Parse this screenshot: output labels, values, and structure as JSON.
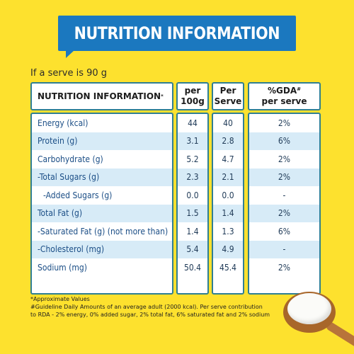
{
  "banner": {
    "title": "NUTRITION INFORMATION"
  },
  "serve_note": "If a serve is 90 g",
  "table": {
    "headers": {
      "name": "NUTRITION INFORMATION",
      "name_sup": "*",
      "per100": "per 100g",
      "per_serve": "Per Serve",
      "gda": "%GDA",
      "gda_sup": "#",
      "gda_sub": "per serve"
    },
    "rows": [
      {
        "name": "Energy (kcal)",
        "per100": "44",
        "per_serve": "40",
        "gda": "2%"
      },
      {
        "name": "Protein (g)",
        "per100": "3.1",
        "per_serve": "2.8",
        "gda": "6%"
      },
      {
        "name": "Carbohydrate (g)",
        "per100": "5.2",
        "per_serve": "4.7",
        "gda": "2%"
      },
      {
        "name": "-Total Sugars (g)",
        "per100": "2.3",
        "per_serve": "2.1",
        "gda": "2%"
      },
      {
        "name": "-Added Sugars (g)",
        "per100": "0.0",
        "per_serve": "0.0",
        "gda": "-"
      },
      {
        "name": "Total Fat (g)",
        "per100": "1.5",
        "per_serve": "1.4",
        "gda": "2%"
      },
      {
        "name": "-Saturated Fat (g) (not more than)",
        "per100": "1.4",
        "per_serve": "1.3",
        "gda": "6%"
      },
      {
        "name": "-Cholesterol (mg)",
        "per100": "5.4",
        "per_serve": "4.9",
        "gda": "-"
      },
      {
        "name": "Sodium (mg)",
        "per100": "50.4",
        "per_serve": "45.4",
        "gda": "2%"
      }
    ]
  },
  "footnotes": {
    "line1": "*Approximate Values",
    "line2": "#Guideline Daily Amounts of an average adult (2000 kcal). Per serve contribution",
    "line3": "to RDA - 2% energy, 0% added sugar, 2% total fat, 6% saturated fat and 2% sodium"
  },
  "colors": {
    "background": "#fde12e",
    "banner": "#1b78bf",
    "border": "#2f7f92",
    "row_alt": "#d7ebf7"
  }
}
